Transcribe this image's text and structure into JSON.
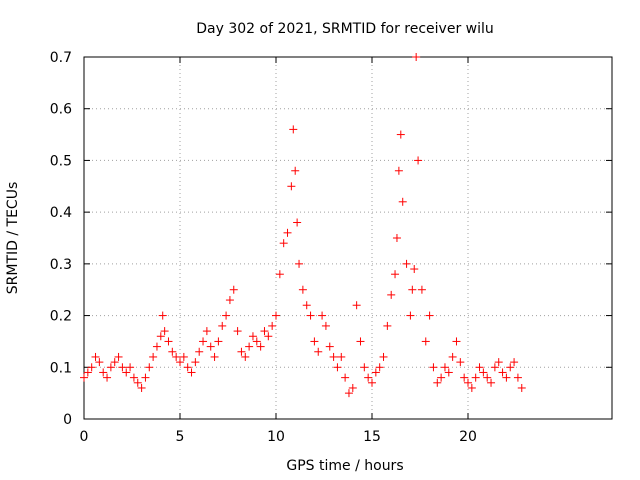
{
  "chart_data": {
    "type": "scatter",
    "title": "Day 302 of 2021, SRMTID for receiver wilu",
    "xlabel": "GPS time / hours",
    "ylabel": "SRMTID / TECUs",
    "xlim": [
      0,
      27.5
    ],
    "ylim": [
      0,
      0.7
    ],
    "xticks": [
      0,
      5,
      10,
      15,
      20
    ],
    "yticks": [
      0,
      0.1,
      0.2,
      0.3,
      0.4,
      0.5,
      0.6,
      0.7
    ],
    "xtick_labels": [
      "0",
      "5",
      "10",
      "15",
      "20"
    ],
    "ytick_labels": [
      "0",
      "0.1",
      "0.2",
      "0.3",
      "0.4",
      "0.5",
      "0.6",
      "0.7"
    ],
    "grid": true,
    "marker": "+",
    "color": "#ff0000",
    "series": [
      {
        "name": "SRMTID",
        "x": [
          0.0,
          0.2,
          0.4,
          0.6,
          0.8,
          1.0,
          1.2,
          1.4,
          1.6,
          1.8,
          2.0,
          2.2,
          2.4,
          2.6,
          2.8,
          3.0,
          3.2,
          3.4,
          3.6,
          3.8,
          4.0,
          4.1,
          4.2,
          4.4,
          4.6,
          4.8,
          5.0,
          5.2,
          5.4,
          5.6,
          5.8,
          6.0,
          6.2,
          6.4,
          6.6,
          6.8,
          7.0,
          7.2,
          7.4,
          7.6,
          7.8,
          8.0,
          8.2,
          8.4,
          8.6,
          8.8,
          9.0,
          9.2,
          9.4,
          9.6,
          9.8,
          10.0,
          10.2,
          10.4,
          10.6,
          10.8,
          10.9,
          11.0,
          11.1,
          11.2,
          11.4,
          11.6,
          11.8,
          12.0,
          12.2,
          12.4,
          12.6,
          12.8,
          13.0,
          13.2,
          13.4,
          13.6,
          13.8,
          14.0,
          14.2,
          14.4,
          14.6,
          14.8,
          15.0,
          15.2,
          15.4,
          15.6,
          15.8,
          16.0,
          16.2,
          16.3,
          16.4,
          16.5,
          16.6,
          16.8,
          17.0,
          17.1,
          17.2,
          17.3,
          17.4,
          17.6,
          17.8,
          18.0,
          18.2,
          18.4,
          18.6,
          18.8,
          19.0,
          19.2,
          19.4,
          19.6,
          19.8,
          20.0,
          20.2,
          20.4,
          20.6,
          20.8,
          21.0,
          21.2,
          21.4,
          21.6,
          21.8,
          22.0,
          22.2,
          22.4,
          22.6,
          22.8
        ],
        "y": [
          0.08,
          0.09,
          0.1,
          0.12,
          0.11,
          0.09,
          0.08,
          0.1,
          0.11,
          0.12,
          0.1,
          0.09,
          0.1,
          0.08,
          0.07,
          0.06,
          0.08,
          0.1,
          0.12,
          0.14,
          0.16,
          0.2,
          0.17,
          0.15,
          0.13,
          0.12,
          0.11,
          0.12,
          0.1,
          0.09,
          0.11,
          0.13,
          0.15,
          0.17,
          0.14,
          0.12,
          0.15,
          0.18,
          0.2,
          0.23,
          0.25,
          0.17,
          0.13,
          0.12,
          0.14,
          0.16,
          0.15,
          0.14,
          0.17,
          0.16,
          0.18,
          0.2,
          0.28,
          0.34,
          0.36,
          0.45,
          0.56,
          0.48,
          0.38,
          0.3,
          0.25,
          0.22,
          0.2,
          0.15,
          0.13,
          0.2,
          0.18,
          0.14,
          0.12,
          0.1,
          0.12,
          0.08,
          0.05,
          0.06,
          0.22,
          0.15,
          0.1,
          0.08,
          0.07,
          0.09,
          0.1,
          0.12,
          0.18,
          0.24,
          0.28,
          0.35,
          0.48,
          0.55,
          0.42,
          0.3,
          0.2,
          0.25,
          0.29,
          0.7,
          0.5,
          0.25,
          0.15,
          0.2,
          0.1,
          0.07,
          0.08,
          0.1,
          0.09,
          0.12,
          0.15,
          0.11,
          0.08,
          0.07,
          0.06,
          0.08,
          0.1,
          0.09,
          0.08,
          0.07,
          0.1,
          0.11,
          0.09,
          0.08,
          0.1,
          0.11,
          0.08,
          0.06
        ]
      }
    ]
  }
}
